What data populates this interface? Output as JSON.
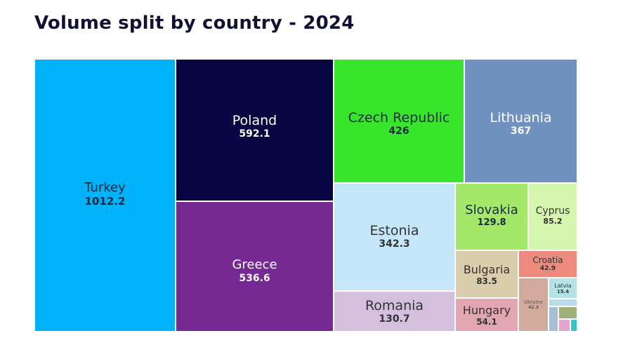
{
  "title": "Volume split by country - 2024",
  "chart_data": {
    "type": "treemap",
    "title": "Volume split by country - 2024",
    "items": [
      {
        "name": "Turkey",
        "value_label": "1012.2",
        "value": 1012.2,
        "color": "#00b2f7",
        "text_color": "#1c2a40"
      },
      {
        "name": "Poland",
        "value_label": "592.1",
        "value": 592.1,
        "color": "#080642",
        "text_color": "#ffffff"
      },
      {
        "name": "Greece",
        "value_label": "536.6",
        "value": 536.6,
        "color": "#762893",
        "text_color": "#ffffff"
      },
      {
        "name": "Czech Republic",
        "value_label": "426",
        "value": 426,
        "color": "#38e52d",
        "text_color": "#1c2a40"
      },
      {
        "name": "Lithuania",
        "value_label": "367",
        "value": 367,
        "color": "#7191c0",
        "text_color": "#ffffff"
      },
      {
        "name": "Estonia",
        "value_label": "342.3",
        "value": 342.3,
        "color": "#c5e5f8",
        "text_color": "#333333"
      },
      {
        "name": "Romania",
        "value_label": "130.7",
        "value": 130.7,
        "color": "#d4bfdf",
        "text_color": "#333333"
      },
      {
        "name": "Slovakia",
        "value_label": "129.8",
        "value": 129.8,
        "color": "#a4e86a",
        "text_color": "#1c2a40"
      },
      {
        "name": "Cyprus",
        "value_label": "85.2",
        "value": 85.2,
        "color": "#d5f6ae",
        "text_color": "#333333"
      },
      {
        "name": "Bulgaria",
        "value_label": "83.5",
        "value": 83.5,
        "color": "#d9cdab",
        "text_color": "#333333"
      },
      {
        "name": "Croatia",
        "value_label": "42.9",
        "value": 42.9,
        "color": "#ec8a7e",
        "text_color": "#333333"
      },
      {
        "name": "Hungary",
        "value_label": "54.1",
        "value": 54.1,
        "color": "#e2a6b0",
        "text_color": "#333333"
      },
      {
        "name": "Ukraine",
        "value_label": "42.3",
        "value": 42.3,
        "color": "#d2aa9c",
        "text_color": "#555555"
      },
      {
        "name": "Latvia",
        "value_label": "15.4",
        "value": 15.4,
        "color": "#b4e2e6",
        "text_color": "#333333"
      },
      {
        "name": "",
        "value_label": "",
        "value": 6,
        "color": "#b7dbe8",
        "text_color": "#333333"
      },
      {
        "name": "",
        "value_label": "",
        "value": 6,
        "color": "#a6bdd6",
        "text_color": "#333333"
      },
      {
        "name": "",
        "value_label": "",
        "value": 6,
        "color": "#9fb07a",
        "text_color": "#333333"
      },
      {
        "name": "",
        "value_label": "",
        "value": 3,
        "color": "#e2a6cf",
        "text_color": "#333333"
      },
      {
        "name": "",
        "value_label": "",
        "value": 3,
        "color": "#34c3c9",
        "text_color": "#333333"
      }
    ]
  }
}
